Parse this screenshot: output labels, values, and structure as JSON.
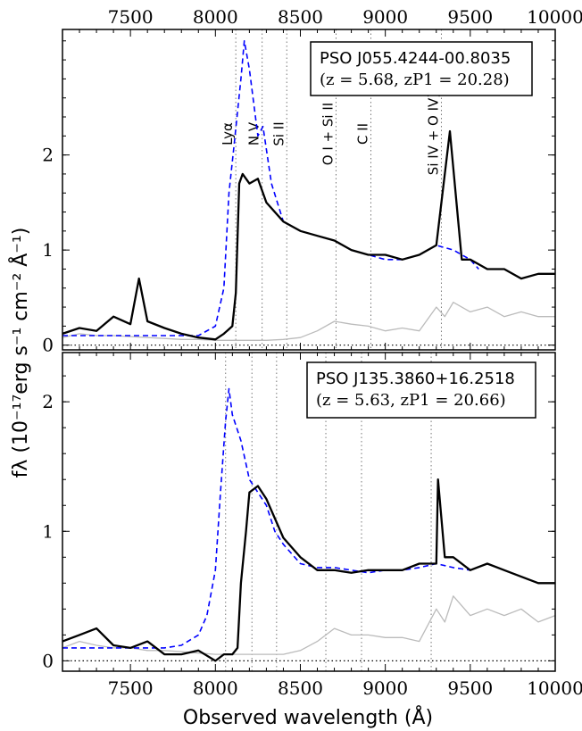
{
  "chart_data": {
    "type": "line",
    "xlabel": "Observed wavelength (Å)",
    "ylabel": "fλ (10⁻¹⁷erg s⁻¹ cm⁻² Å⁻¹)",
    "xlim": [
      7100,
      10000
    ],
    "x_ticks": [
      "7500",
      "8000",
      "8500",
      "9000",
      "9500",
      "10000"
    ],
    "panels": [
      {
        "name": "PSO J055.4244-00.8035",
        "subtitle": "(z = 5.68, zP1 = 20.28)",
        "ylim": [
          -0.05,
          3.32
        ],
        "y_ticks": [
          "0",
          "1",
          "2"
        ],
        "redshift": 5.68,
        "lines": [
          {
            "label": "Lyα",
            "x": 8120
          },
          {
            "label": "N V",
            "x": 8275
          },
          {
            "label": "Si II",
            "x": 8420
          },
          {
            "label": "O I + Si II",
            "x": 8710
          },
          {
            "label": "C II",
            "x": 8915
          },
          {
            "label": "Si IV + O IV]",
            "x": 9330
          }
        ],
        "series": [
          {
            "role": "spectrum",
            "color": "#000000",
            "x": [
              7100,
              7200,
              7300,
              7400,
              7500,
              7550,
              7600,
              7700,
              7800,
              7900,
              8000,
              8050,
              8100,
              8120,
              8140,
              8160,
              8200,
              8250,
              8300,
              8400,
              8500,
              8600,
              8700,
              8800,
              8900,
              9000,
              9100,
              9200,
              9300,
              9380,
              9450,
              9500,
              9600,
              9700,
              9800,
              9900,
              10000
            ],
            "y": [
              0.12,
              0.18,
              0.15,
              0.3,
              0.22,
              0.7,
              0.25,
              0.18,
              0.12,
              0.08,
              0.06,
              0.12,
              0.2,
              0.55,
              1.7,
              1.8,
              1.7,
              1.75,
              1.5,
              1.3,
              1.2,
              1.15,
              1.1,
              1.0,
              0.95,
              0.95,
              0.9,
              0.95,
              1.05,
              2.25,
              0.9,
              0.9,
              0.8,
              0.8,
              0.7,
              0.75,
              0.75
            ]
          },
          {
            "role": "composite",
            "color": "#0000ff",
            "x": [
              7100,
              7300,
              7500,
              7700,
              7900,
              8000,
              8050,
              8080,
              8110,
              8150,
              8170,
              8200,
              8250,
              8280,
              8330,
              8400,
              8500,
              8600,
              8700,
              8800,
              8900,
              9000,
              9100,
              9200,
              9300,
              9400,
              9500,
              9550
            ],
            "y": [
              0.1,
              0.1,
              0.1,
              0.1,
              0.1,
              0.2,
              0.6,
              1.6,
              2.1,
              2.8,
              3.2,
              2.9,
              2.2,
              2.3,
              1.7,
              1.3,
              1.2,
              1.15,
              1.1,
              1.0,
              0.95,
              0.9,
              0.9,
              0.95,
              1.05,
              1.0,
              0.9,
              0.8
            ]
          },
          {
            "role": "noise",
            "color": "#bbbbbb",
            "x": [
              7100,
              7200,
              7300,
              7400,
              7500,
              7600,
              7700,
              7800,
              7900,
              8000,
              8100,
              8200,
              8300,
              8400,
              8500,
              8600,
              8700,
              8800,
              8900,
              9000,
              9100,
              9200,
              9300,
              9350,
              9400,
              9500,
              9600,
              9700,
              9800,
              9900,
              10000
            ],
            "y": [
              0.08,
              0.12,
              0.1,
              0.1,
              0.09,
              0.08,
              0.07,
              0.06,
              0.06,
              0.05,
              0.05,
              0.05,
              0.05,
              0.06,
              0.08,
              0.15,
              0.25,
              0.22,
              0.2,
              0.15,
              0.18,
              0.15,
              0.4,
              0.3,
              0.45,
              0.35,
              0.4,
              0.3,
              0.35,
              0.3,
              0.3
            ]
          }
        ]
      },
      {
        "name": "PSO J135.3860+16.2518",
        "subtitle": "(z = 5.63, zP1 = 20.66)",
        "ylim": [
          -0.08,
          2.38
        ],
        "y_ticks": [
          "0",
          "1",
          "2"
        ],
        "redshift": 5.63,
        "lines": [
          {
            "label": "Lyα",
            "x": 8060
          },
          {
            "label": "N V",
            "x": 8215
          },
          {
            "label": "Si II",
            "x": 8360
          },
          {
            "label": "O I + Si II",
            "x": 8650
          },
          {
            "label": "C II",
            "x": 8860
          },
          {
            "label": "Si IV + O IV]",
            "x": 9270
          }
        ],
        "series": [
          {
            "role": "spectrum",
            "color": "#000000",
            "x": [
              7100,
              7200,
              7300,
              7400,
              7500,
              7600,
              7700,
              7800,
              7900,
              8000,
              8050,
              8100,
              8130,
              8150,
              8180,
              8200,
              8250,
              8300,
              8400,
              8500,
              8600,
              8700,
              8800,
              8900,
              9000,
              9100,
              9200,
              9300,
              9310,
              9350,
              9400,
              9500,
              9600,
              9700,
              9800,
              9900,
              10000
            ],
            "y": [
              0.15,
              0.2,
              0.25,
              0.12,
              0.1,
              0.15,
              0.05,
              0.05,
              0.08,
              0.0,
              0.05,
              0.05,
              0.1,
              0.6,
              1.0,
              1.3,
              1.35,
              1.25,
              0.95,
              0.8,
              0.7,
              0.7,
              0.68,
              0.7,
              0.7,
              0.7,
              0.75,
              0.75,
              1.4,
              0.8,
              0.8,
              0.7,
              0.75,
              0.7,
              0.65,
              0.6,
              0.6
            ]
          },
          {
            "role": "composite",
            "color": "#0000ff",
            "x": [
              7100,
              7300,
              7500,
              7700,
              7800,
              7900,
              7950,
              8000,
              8030,
              8060,
              8080,
              8100,
              8150,
              8200,
              8250,
              8300,
              8350,
              8400,
              8500,
              8600,
              8700,
              8800,
              8900,
              9000,
              9100,
              9200,
              9300,
              9400,
              9500
            ],
            "y": [
              0.1,
              0.1,
              0.1,
              0.1,
              0.12,
              0.2,
              0.35,
              0.7,
              1.3,
              1.85,
              2.1,
              1.9,
              1.7,
              1.4,
              1.3,
              1.2,
              1.0,
              0.9,
              0.75,
              0.72,
              0.72,
              0.7,
              0.68,
              0.7,
              0.7,
              0.72,
              0.75,
              0.72,
              0.7
            ]
          },
          {
            "role": "noise",
            "color": "#bbbbbb",
            "x": [
              7100,
              7200,
              7300,
              7400,
              7500,
              7600,
              7700,
              7800,
              7900,
              8000,
              8100,
              8200,
              8300,
              8400,
              8500,
              8600,
              8700,
              8800,
              8900,
              9000,
              9100,
              9200,
              9300,
              9350,
              9400,
              9500,
              9600,
              9700,
              9800,
              9900,
              10000
            ],
            "y": [
              0.1,
              0.15,
              0.12,
              0.1,
              0.1,
              0.08,
              0.08,
              0.07,
              0.06,
              0.05,
              0.05,
              0.05,
              0.05,
              0.05,
              0.08,
              0.15,
              0.25,
              0.2,
              0.2,
              0.18,
              0.18,
              0.15,
              0.4,
              0.3,
              0.5,
              0.35,
              0.4,
              0.35,
              0.4,
              0.3,
              0.35
            ]
          }
        ]
      }
    ]
  }
}
